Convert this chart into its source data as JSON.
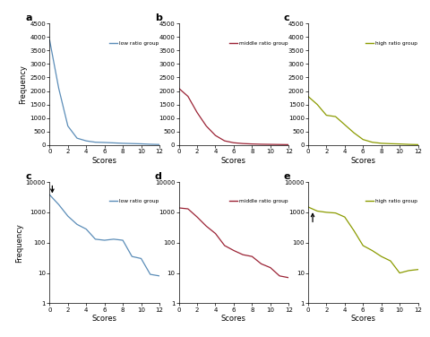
{
  "blue_color": "#5b8db8",
  "red_color": "#9b2335",
  "green_color": "#8b9b00",
  "panel_labels": [
    "a",
    "b",
    "c",
    "c",
    "d",
    "e"
  ],
  "legend_labels": [
    "low ratio group",
    "middle ratio group",
    "high ratio group",
    "low ratio group",
    "middle ratio group",
    "high ratio group"
  ],
  "scores": [
    0,
    1,
    2,
    3,
    4,
    5,
    6,
    7,
    8,
    9,
    10,
    11,
    12
  ],
  "freq_a": [
    3900,
    2100,
    700,
    250,
    150,
    100,
    90,
    75,
    60,
    50,
    40,
    25,
    15
  ],
  "freq_b": [
    2100,
    1800,
    1200,
    700,
    350,
    150,
    80,
    50,
    35,
    25,
    20,
    15,
    10
  ],
  "freq_c_top": [
    1800,
    1500,
    1100,
    1050,
    750,
    450,
    200,
    100,
    60,
    45,
    35,
    20,
    10
  ],
  "freq_c_log": [
    3800,
    1800,
    750,
    400,
    280,
    130,
    120,
    130,
    120,
    35,
    30,
    9,
    8
  ],
  "freq_d_log": [
    1400,
    1300,
    700,
    350,
    200,
    80,
    55,
    40,
    35,
    20,
    15,
    8,
    7
  ],
  "freq_e_log": [
    1500,
    1100,
    1000,
    950,
    700,
    250,
    80,
    55,
    35,
    25,
    10,
    12,
    13
  ],
  "yticks_top": [
    0,
    500,
    1000,
    1500,
    2000,
    2500,
    3000,
    3500,
    4000,
    4500
  ],
  "ytick_labels_top": [
    "0",
    "500",
    "1000",
    "1500",
    "2000",
    "2500",
    "3000",
    "3500",
    "4000",
    "4500"
  ],
  "yticks_log": [
    1,
    10,
    100,
    1000,
    10000
  ],
  "ytick_labels_log": [
    "1",
    "10",
    "100",
    "1000",
    "10000"
  ],
  "xticks": [
    0,
    2,
    4,
    6,
    8,
    10,
    12
  ],
  "xtick_labels": [
    "0",
    "2",
    "4",
    "6",
    "8",
    "10",
    "12"
  ]
}
